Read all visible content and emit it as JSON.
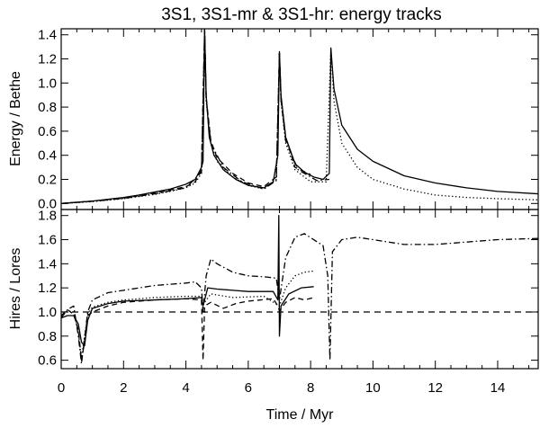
{
  "chart_data": [
    {
      "type": "line",
      "title": "3S1, 3S1-mr & 3S1-hr: energy tracks",
      "xlabel": "",
      "ylabel": "Energy / Bethe",
      "xlim": [
        0,
        15.3
      ],
      "ylim": [
        -0.05,
        1.45
      ],
      "x_ticks": [
        0,
        2,
        4,
        6,
        8,
        10,
        12,
        14
      ],
      "y_ticks": [
        0.0,
        0.2,
        0.4,
        0.6,
        0.8,
        1.0,
        1.2,
        1.4
      ],
      "y_tick_labels": [
        "0.0",
        "0.2",
        "0.4",
        "0.6",
        "0.8",
        "1.0",
        "1.2",
        "1.4"
      ],
      "grid": false,
      "series": [
        {
          "style": "solid",
          "points": [
            [
              0,
              0
            ],
            [
              0.5,
              0.01
            ],
            [
              1,
              0.02
            ],
            [
              1.5,
              0.035
            ],
            [
              2,
              0.05
            ],
            [
              2.5,
              0.07
            ],
            [
              3,
              0.095
            ],
            [
              3.5,
              0.12
            ],
            [
              4,
              0.16
            ],
            [
              4.3,
              0.2
            ],
            [
              4.5,
              0.3
            ],
            [
              4.55,
              0.35
            ],
            [
              4.6,
              1.45
            ],
            [
              4.65,
              0.9
            ],
            [
              4.75,
              0.55
            ],
            [
              4.9,
              0.4
            ],
            [
              5.2,
              0.28
            ],
            [
              5.6,
              0.2
            ],
            [
              6,
              0.15
            ],
            [
              6.5,
              0.13
            ],
            [
              6.8,
              0.18
            ],
            [
              6.95,
              0.4
            ],
            [
              7,
              1.26
            ],
            [
              7.05,
              0.9
            ],
            [
              7.2,
              0.55
            ],
            [
              7.5,
              0.33
            ],
            [
              7.8,
              0.26
            ],
            [
              8.1,
              0.22
            ],
            [
              8.4,
              0.2
            ],
            [
              8.6,
              0.25
            ],
            [
              8.65,
              1.29
            ],
            [
              8.75,
              0.95
            ],
            [
              9,
              0.65
            ],
            [
              9.5,
              0.45
            ],
            [
              10,
              0.35
            ],
            [
              11,
              0.23
            ],
            [
              12,
              0.17
            ],
            [
              13,
              0.13
            ],
            [
              14,
              0.1
            ],
            [
              15.3,
              0.08
            ]
          ]
        },
        {
          "style": "dotted",
          "points": [
            [
              0,
              0
            ],
            [
              1,
              0.015
            ],
            [
              2,
              0.04
            ],
            [
              3,
              0.075
            ],
            [
              3.5,
              0.1
            ],
            [
              4,
              0.13
            ],
            [
              4.3,
              0.17
            ],
            [
              4.5,
              0.25
            ],
            [
              4.6,
              1.44
            ],
            [
              4.65,
              0.85
            ],
            [
              4.8,
              0.5
            ],
            [
              5,
              0.35
            ],
            [
              5.5,
              0.22
            ],
            [
              6,
              0.15
            ],
            [
              6.5,
              0.12
            ],
            [
              6.9,
              0.2
            ],
            [
              7,
              1.25
            ],
            [
              7.05,
              0.85
            ],
            [
              7.2,
              0.5
            ],
            [
              7.5,
              0.28
            ],
            [
              8,
              0.18
            ],
            [
              8.5,
              0.18
            ],
            [
              8.65,
              1.28
            ],
            [
              8.75,
              0.85
            ],
            [
              9,
              0.5
            ],
            [
              9.5,
              0.3
            ],
            [
              10,
              0.2
            ],
            [
              11,
              0.12
            ],
            [
              12,
              0.07
            ],
            [
              13,
              0.05
            ],
            [
              14,
              0.04
            ],
            [
              15.3,
              0.03
            ]
          ]
        },
        {
          "style": "dashed",
          "points": [
            [
              0,
              0
            ],
            [
              1,
              0.02
            ],
            [
              2,
              0.045
            ],
            [
              3,
              0.085
            ],
            [
              4,
              0.14
            ],
            [
              4.3,
              0.18
            ],
            [
              4.5,
              0.28
            ],
            [
              4.6,
              1.44
            ],
            [
              4.65,
              0.88
            ],
            [
              4.8,
              0.52
            ],
            [
              5,
              0.38
            ],
            [
              5.5,
              0.25
            ],
            [
              6,
              0.17
            ],
            [
              6.5,
              0.14
            ],
            [
              6.9,
              0.22
            ],
            [
              7,
              1.25
            ],
            [
              7.05,
              0.88
            ],
            [
              7.2,
              0.55
            ],
            [
              7.5,
              0.3
            ],
            [
              8,
              0.24
            ]
          ]
        },
        {
          "style": "dashdot",
          "points": [
            [
              0,
              0
            ],
            [
              1,
              0.018
            ],
            [
              2,
              0.042
            ],
            [
              3,
              0.08
            ],
            [
              4,
              0.13
            ],
            [
              4.5,
              0.26
            ],
            [
              4.6,
              1.44
            ],
            [
              4.65,
              0.87
            ],
            [
              4.8,
              0.5
            ],
            [
              5.2,
              0.3
            ],
            [
              5.8,
              0.18
            ],
            [
              6.5,
              0.12
            ],
            [
              6.9,
              0.19
            ],
            [
              7,
              1.25
            ],
            [
              7.05,
              0.86
            ],
            [
              7.2,
              0.52
            ],
            [
              7.6,
              0.28
            ],
            [
              8.2,
              0.19
            ],
            [
              8.6,
              0.2
            ]
          ]
        }
      ]
    },
    {
      "type": "line",
      "title": "",
      "xlabel": "Time / Myr",
      "ylabel": "Hires / Lores",
      "xlim": [
        0,
        15.3
      ],
      "ylim": [
        0.53,
        1.85
      ],
      "x_ticks": [
        0,
        2,
        4,
        6,
        8,
        10,
        12,
        14
      ],
      "y_ticks": [
        0.6,
        0.8,
        1.0,
        1.2,
        1.4,
        1.6,
        1.8
      ],
      "y_tick_labels": [
        "0.6",
        "0.8",
        "1.0",
        "1.2",
        "1.4",
        "1.6",
        "1.8"
      ],
      "grid": false,
      "series": [
        {
          "style": "solid",
          "points": [
            [
              0,
              0.95
            ],
            [
              0.2,
              0.97
            ],
            [
              0.4,
              0.97
            ],
            [
              0.55,
              0.9
            ],
            [
              0.65,
              0.75
            ],
            [
              0.75,
              0.72
            ],
            [
              0.85,
              0.93
            ],
            [
              1,
              1.03
            ],
            [
              1.5,
              1.07
            ],
            [
              2,
              1.09
            ],
            [
              3,
              1.1
            ],
            [
              4,
              1.11
            ],
            [
              4.5,
              1.12
            ],
            [
              4.55,
              1.05
            ],
            [
              4.6,
              1.1
            ],
            [
              4.7,
              1.2
            ],
            [
              5,
              1.19
            ],
            [
              6,
              1.17
            ],
            [
              6.8,
              1.17
            ],
            [
              6.95,
              1.1
            ],
            [
              6.98,
              1.8
            ],
            [
              7,
              0.8
            ],
            [
              7.05,
              1.05
            ],
            [
              7.3,
              1.15
            ],
            [
              7.7,
              1.2
            ],
            [
              8.1,
              1.21
            ]
          ]
        },
        {
          "style": "dashed",
          "points": [
            [
              0,
              0.97
            ],
            [
              0.2,
              1.02
            ],
            [
              0.4,
              0.98
            ],
            [
              0.55,
              0.85
            ],
            [
              0.65,
              0.6
            ],
            [
              0.75,
              0.75
            ],
            [
              0.85,
              0.97
            ],
            [
              1,
              1.0
            ],
            [
              1.5,
              1.05
            ],
            [
              2,
              1.08
            ],
            [
              3,
              1.1
            ],
            [
              4,
              1.11
            ],
            [
              4.5,
              1.1
            ],
            [
              4.55,
              0.6
            ],
            [
              4.6,
              1.05
            ],
            [
              4.8,
              1.08
            ],
            [
              5.2,
              1.03
            ],
            [
              5.6,
              1.07
            ],
            [
              6,
              1.09
            ],
            [
              6.8,
              1.11
            ],
            [
              6.95,
              1.05
            ],
            [
              7,
              1.01
            ],
            [
              7.2,
              1.08
            ],
            [
              7.5,
              1.12
            ],
            [
              7.8,
              1.1
            ],
            [
              8.1,
              1.12
            ]
          ]
        },
        {
          "style": "dashdot",
          "points": [
            [
              0,
              0.95
            ],
            [
              0.2,
              1.02
            ],
            [
              0.4,
              1.05
            ],
            [
              0.55,
              0.8
            ],
            [
              0.65,
              0.57
            ],
            [
              0.75,
              0.78
            ],
            [
              0.85,
              1.0
            ],
            [
              1,
              1.1
            ],
            [
              1.5,
              1.16
            ],
            [
              2,
              1.18
            ],
            [
              2.5,
              1.2
            ],
            [
              3,
              1.22
            ],
            [
              3.5,
              1.23
            ],
            [
              4,
              1.24
            ],
            [
              4.3,
              1.25
            ],
            [
              4.5,
              1.2
            ],
            [
              4.55,
              1.0
            ],
            [
              4.65,
              1.3
            ],
            [
              4.8,
              1.44
            ],
            [
              5,
              1.4
            ],
            [
              5.5,
              1.33
            ],
            [
              6,
              1.3
            ],
            [
              6.6,
              1.29
            ],
            [
              6.9,
              1.28
            ],
            [
              7,
              1.1
            ],
            [
              7.2,
              1.45
            ],
            [
              7.5,
              1.62
            ],
            [
              7.8,
              1.65
            ],
            [
              8.1,
              1.6
            ],
            [
              8.4,
              1.55
            ],
            [
              8.55,
              1.3
            ],
            [
              8.62,
              0.6
            ],
            [
              8.7,
              1.5
            ],
            [
              9,
              1.6
            ],
            [
              9.5,
              1.62
            ],
            [
              10,
              1.6
            ],
            [
              11,
              1.56
            ],
            [
              12,
              1.56
            ],
            [
              13,
              1.58
            ],
            [
              14,
              1.6
            ],
            [
              15.3,
              1.61
            ]
          ]
        },
        {
          "style": "dotted",
          "points": [
            [
              0,
              0.96
            ],
            [
              0.2,
              1.01
            ],
            [
              0.4,
              1.0
            ],
            [
              0.55,
              0.83
            ],
            [
              0.65,
              0.62
            ],
            [
              0.75,
              0.8
            ],
            [
              0.85,
              0.98
            ],
            [
              1,
              1.04
            ],
            [
              1.5,
              1.08
            ],
            [
              2,
              1.1
            ],
            [
              3,
              1.12
            ],
            [
              4,
              1.13
            ],
            [
              4.5,
              1.13
            ],
            [
              4.6,
              1.08
            ],
            [
              4.8,
              1.15
            ],
            [
              5.5,
              1.12
            ],
            [
              6.5,
              1.13
            ],
            [
              7,
              1.05
            ],
            [
              7.2,
              1.2
            ],
            [
              7.5,
              1.3
            ],
            [
              7.8,
              1.33
            ],
            [
              8.1,
              1.34
            ]
          ]
        },
        {
          "style": "reference",
          "points": [
            [
              0,
              1.0
            ],
            [
              15.3,
              1.0
            ]
          ]
        }
      ]
    }
  ]
}
